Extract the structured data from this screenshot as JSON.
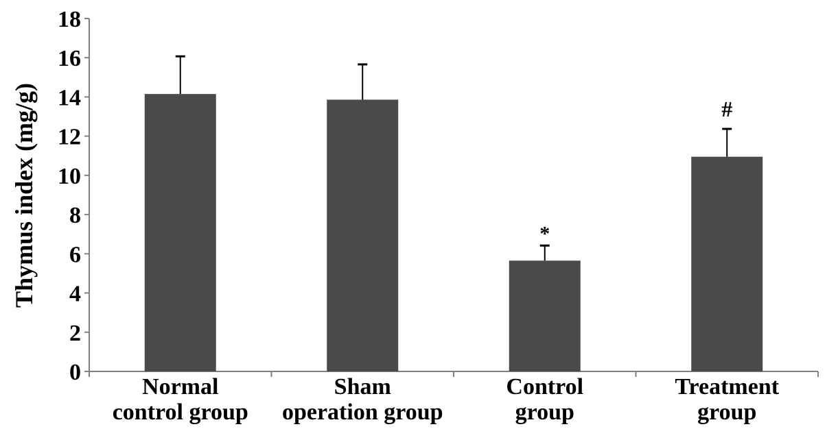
{
  "chart_data": {
    "type": "bar",
    "title": "",
    "xlabel": "",
    "ylabel": "Thymus index (mg/g)",
    "ylim": [
      0,
      18
    ],
    "yticks": [
      0,
      2,
      4,
      6,
      8,
      10,
      12,
      14,
      16,
      18
    ],
    "grid": false,
    "categories": [
      [
        "Normal",
        "control group"
      ],
      [
        "Sham",
        "operation group"
      ],
      [
        "Control",
        "group"
      ],
      [
        "Treatment",
        "group"
      ]
    ],
    "values": [
      14.15,
      13.86,
      5.65,
      10.95
    ],
    "error_upper": [
      16.07,
      15.66,
      6.42,
      12.37
    ],
    "annotations": [
      "",
      "",
      "*",
      "#"
    ],
    "bar_color": "#4a4a4a",
    "axis_color": "#808080"
  }
}
